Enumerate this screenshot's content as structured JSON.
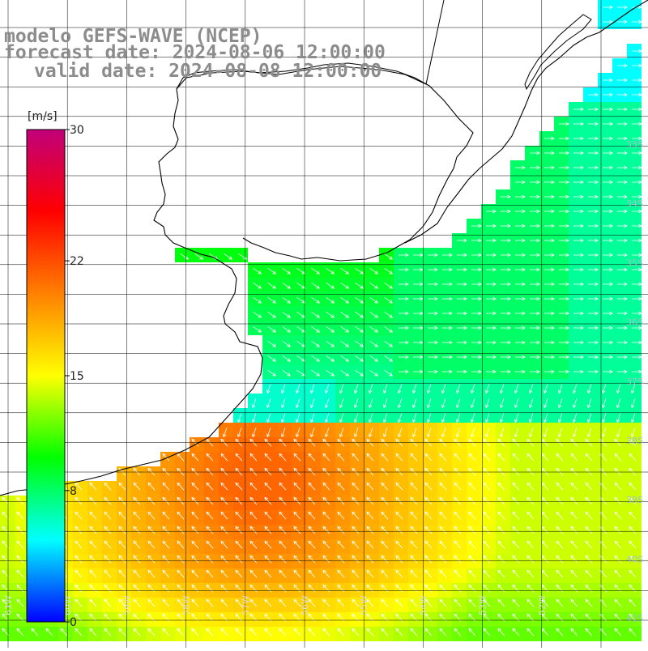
{
  "title": {
    "line1": "modelo GEFS-WAVE (NCEP)",
    "line2": "forecast date: 2024-08-06 12:00:00",
    "line3": "valid date: 2024-08-08 12:00:00"
  },
  "colorbar": {
    "unit": "[m/s]",
    "ticks": [
      "30",
      "22",
      "15",
      "8",
      "0"
    ],
    "tick_values": [
      30,
      22,
      15,
      8,
      0
    ],
    "min": 0,
    "max": 30,
    "stops": [
      "#0000ff",
      "#00ffff",
      "#00ff00",
      "#ffff00",
      "#ff8000",
      "#ff0000",
      "#c0007a"
    ]
  },
  "grid": {
    "lat_labels": [
      "33S",
      "34S",
      "35S",
      "36S",
      "37S",
      "38S",
      "39S",
      "40S",
      "41S"
    ],
    "lon_labels": [
      "61W",
      "60W",
      "59W",
      "58W",
      "57W",
      "56W",
      "55W",
      "54W",
      "53W",
      "52W"
    ]
  },
  "colors": {
    "land": "#ffffff",
    "coast": "#000000",
    "grid": "#000000",
    "arrow": "#ffffff",
    "title": "#8c8c8c"
  }
}
